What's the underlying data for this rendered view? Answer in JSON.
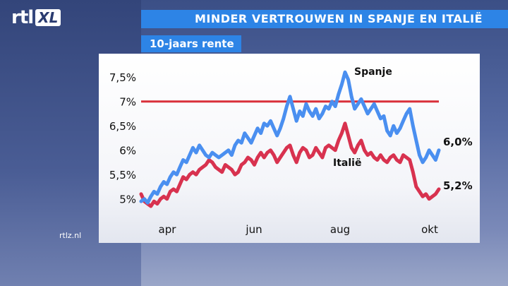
{
  "header": {
    "title": "MINDER VERTROUWEN IN SPANJE EN ITALIË",
    "logo_main": "rtl",
    "logo_sub": "XL"
  },
  "watermark": "rtlz.nl",
  "colors": {
    "spanje": "#4a8ff0",
    "italie": "#d8324f",
    "reference": "#d9303a",
    "accent": "#2d84e6"
  },
  "chart_data": {
    "type": "line",
    "title": "10-jaars rente",
    "xlabel": "",
    "ylabel": "",
    "x_ticks": [
      "apr",
      "jun",
      "aug",
      "okt"
    ],
    "y_ticks": [
      "5%",
      "5,5%",
      "6%",
      "6,5%",
      "7%",
      "7,5%"
    ],
    "ylim": [
      4.85,
      7.75
    ],
    "reference_line": {
      "value": 7.0
    },
    "series": [
      {
        "name": "Spanje",
        "end_label": "6,0%",
        "values": [
          4.95,
          5.0,
          4.92,
          5.05,
          5.15,
          5.1,
          5.25,
          5.35,
          5.3,
          5.45,
          5.55,
          5.5,
          5.65,
          5.8,
          5.75,
          5.9,
          6.05,
          5.95,
          6.1,
          6.0,
          5.9,
          5.85,
          5.95,
          5.9,
          5.85,
          5.9,
          5.95,
          6.0,
          5.9,
          6.1,
          6.2,
          6.15,
          6.35,
          6.25,
          6.15,
          6.3,
          6.45,
          6.35,
          6.55,
          6.5,
          6.6,
          6.45,
          6.3,
          6.45,
          6.65,
          6.9,
          7.1,
          6.85,
          6.6,
          6.8,
          6.7,
          6.95,
          6.8,
          6.7,
          6.85,
          6.65,
          6.75,
          6.9,
          6.85,
          7.0,
          6.9,
          7.15,
          7.35,
          7.6,
          7.45,
          7.1,
          6.85,
          6.95,
          7.05,
          6.9,
          6.75,
          6.85,
          6.95,
          6.8,
          6.65,
          6.7,
          6.4,
          6.3,
          6.5,
          6.35,
          6.45,
          6.6,
          6.75,
          6.85,
          6.5,
          6.2,
          5.9,
          5.75,
          5.85,
          6.0,
          5.9,
          5.8,
          6.0
        ]
      },
      {
        "name": "Italië",
        "end_label": "5,2%",
        "values": [
          5.1,
          4.95,
          4.9,
          4.85,
          4.95,
          4.9,
          5.0,
          5.05,
          5.0,
          5.15,
          5.2,
          5.15,
          5.3,
          5.45,
          5.4,
          5.5,
          5.55,
          5.5,
          5.6,
          5.65,
          5.7,
          5.8,
          5.75,
          5.65,
          5.6,
          5.55,
          5.7,
          5.65,
          5.6,
          5.5,
          5.55,
          5.7,
          5.75,
          5.85,
          5.8,
          5.7,
          5.85,
          5.95,
          5.85,
          5.95,
          6.0,
          5.9,
          5.75,
          5.85,
          5.95,
          6.05,
          6.1,
          5.9,
          5.75,
          5.95,
          6.05,
          6.0,
          5.85,
          5.9,
          6.05,
          5.95,
          5.85,
          6.05,
          6.1,
          6.05,
          6.0,
          6.2,
          6.35,
          6.55,
          6.3,
          6.05,
          5.95,
          6.1,
          6.2,
          6.0,
          5.9,
          5.95,
          5.85,
          5.8,
          5.9,
          5.8,
          5.75,
          5.85,
          5.9,
          5.8,
          5.75,
          5.9,
          5.85,
          5.8,
          5.55,
          5.25,
          5.15,
          5.05,
          5.1,
          5.0,
          5.05,
          5.1,
          5.2
        ]
      }
    ]
  }
}
